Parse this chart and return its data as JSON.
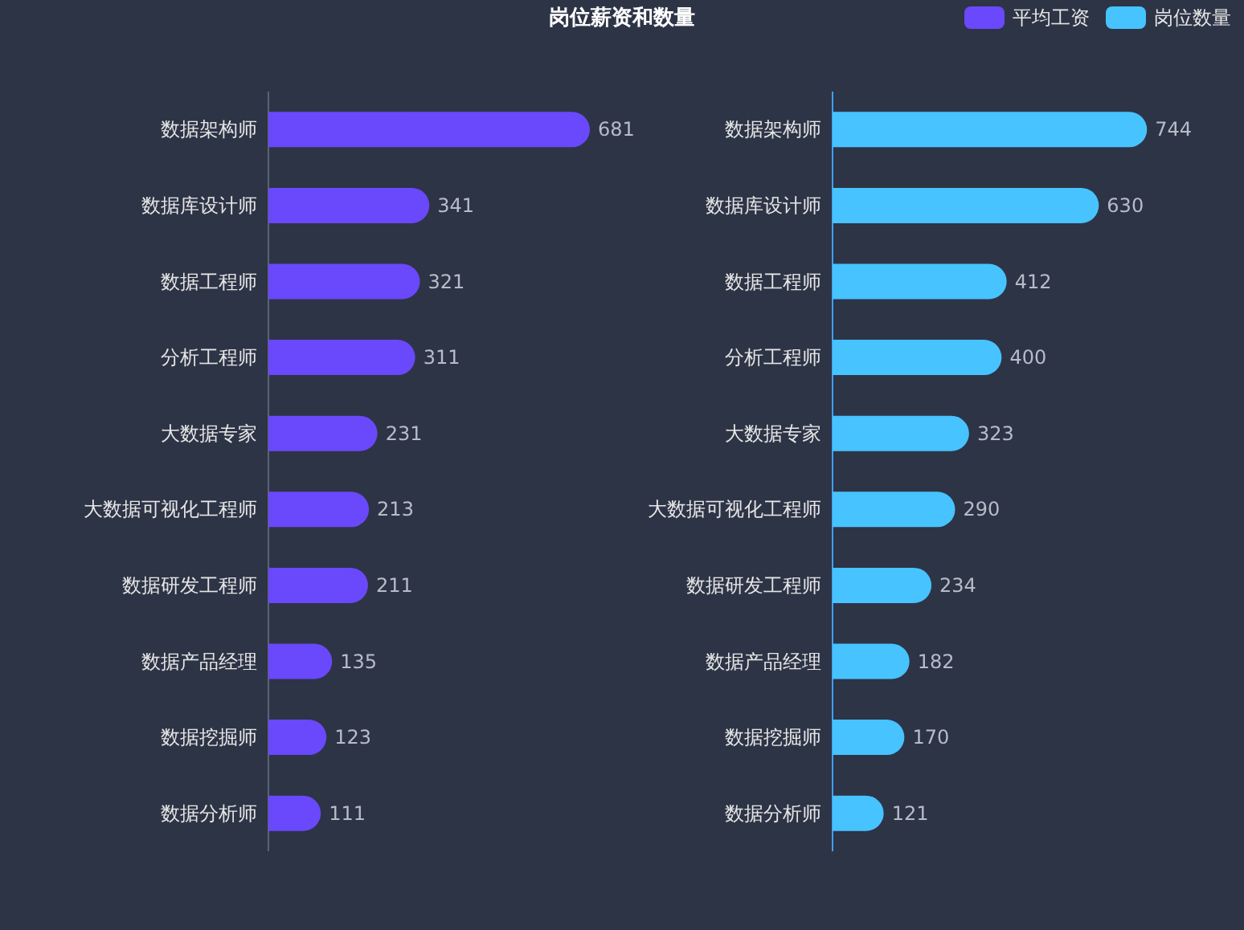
{
  "chart_data": [
    {
      "type": "bar",
      "orientation": "horizontal",
      "title": "岗位薪资和数量",
      "legend": "top right",
      "data_labels": true,
      "categories": [
        "数据架构师",
        "数据库设计师",
        "数据工程师",
        "分析工程师",
        "大数据专家",
        "大数据可视化工程师",
        "数据研发工程师",
        "数据产品经理",
        "数据挖掘师",
        "数据分析师"
      ],
      "series": [
        {
          "name": "平均工资",
          "color": "#6a48fb",
          "values": [
            681,
            341,
            321,
            311,
            231,
            213,
            211,
            135,
            123,
            111
          ]
        }
      ]
    },
    {
      "type": "bar",
      "orientation": "horizontal",
      "legend": "top right",
      "data_labels": true,
      "categories": [
        "数据架构师",
        "数据库设计师",
        "数据工程师",
        "分析工程师",
        "大数据专家",
        "大数据可视化工程师",
        "数据研发工程师",
        "数据产品经理",
        "数据挖掘师",
        "数据分析师"
      ],
      "series": [
        {
          "name": "岗位数量",
          "color": "#47c3ff",
          "values": [
            744,
            630,
            412,
            400,
            323,
            290,
            234,
            182,
            170,
            121
          ]
        }
      ]
    }
  ]
}
